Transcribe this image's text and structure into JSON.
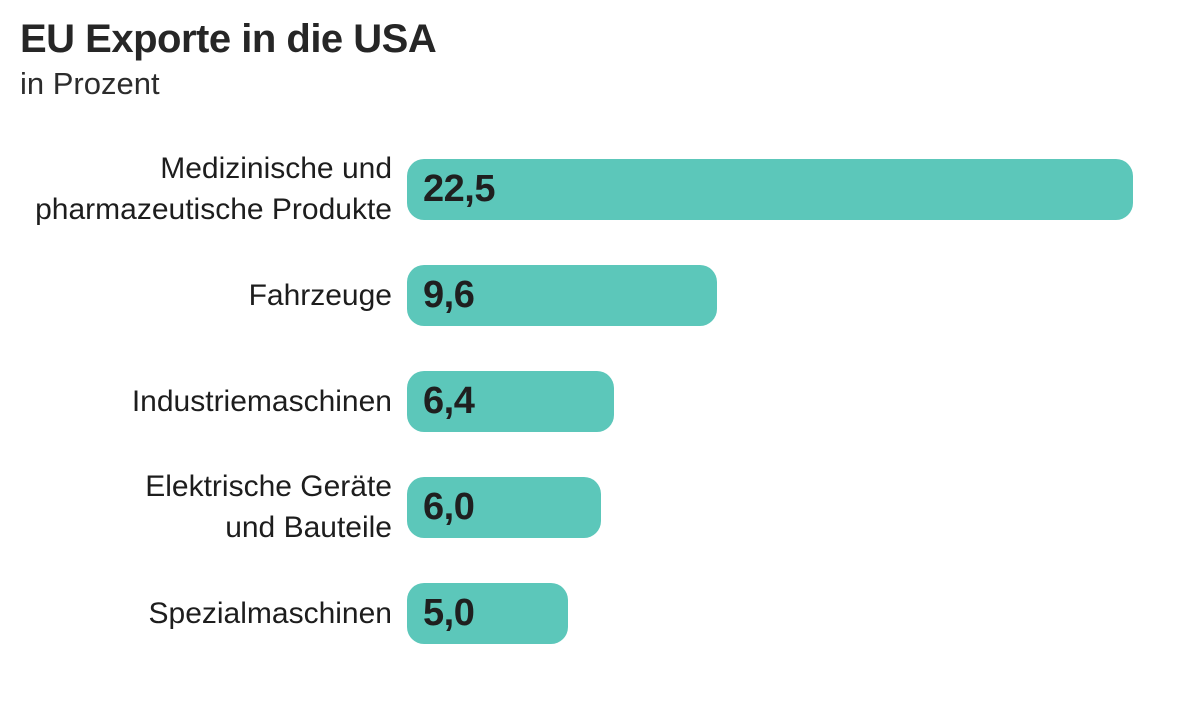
{
  "chart_data": {
    "type": "bar",
    "orientation": "horizontal",
    "title": "EU Exporte in die USA",
    "subtitle": "in Prozent",
    "categories": [
      "Medizinische und\npharmazeutische Produkte",
      "Fahrzeuge",
      "Industriemaschinen",
      "Elektrische Geräte\nund Bauteile",
      "Spezialmaschinen"
    ],
    "values": [
      22.5,
      9.6,
      6.4,
      6.0,
      5.0
    ],
    "value_labels": [
      "22,5",
      "9,6",
      "6,4",
      "6,0",
      "5,0"
    ],
    "xlim": [
      0,
      22.5
    ],
    "bar_color": "#5cc7ba",
    "title_color": "#262626",
    "label_color": "#1d1d1d",
    "value_color": "#1f1f1f",
    "background_color": "#ffffff",
    "grid": false,
    "legend": false
  }
}
